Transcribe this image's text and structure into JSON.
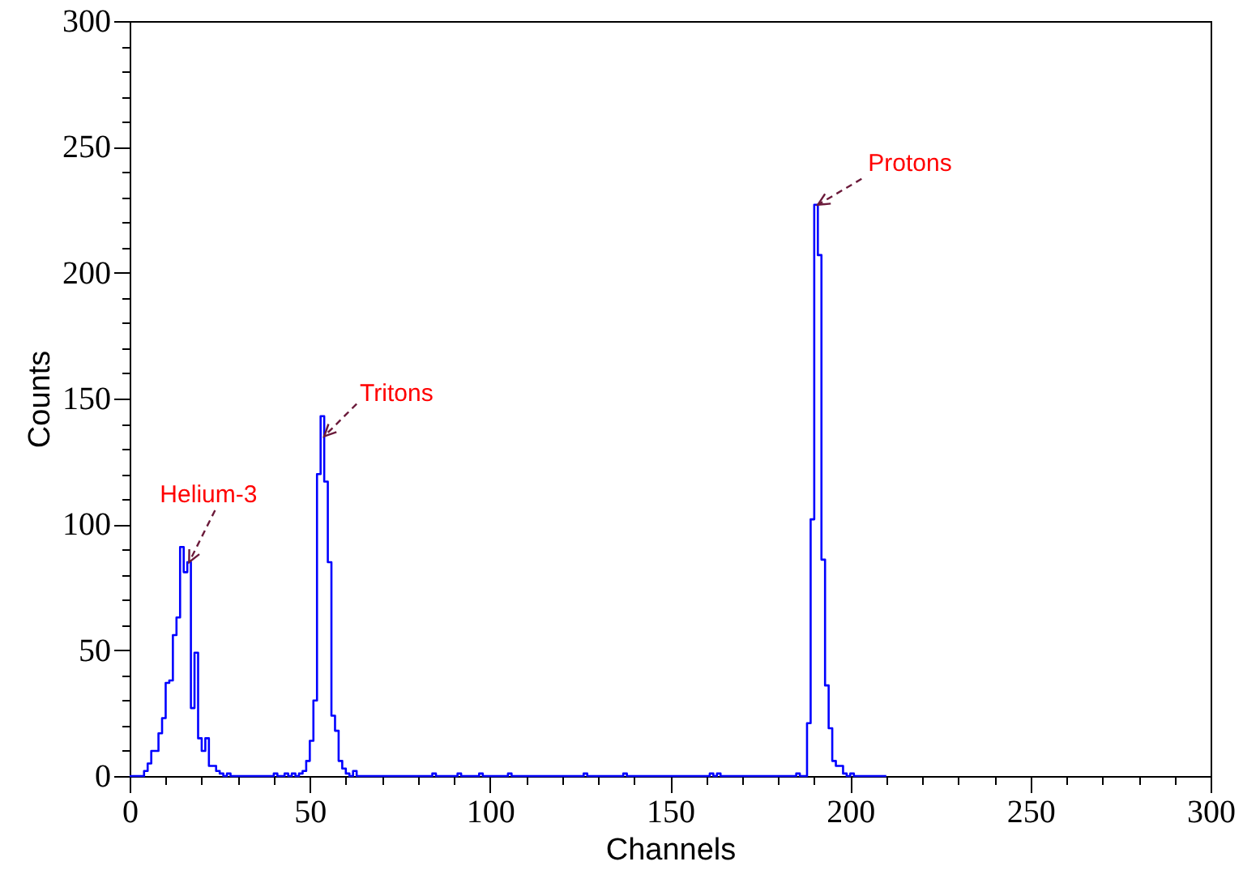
{
  "chart_data": {
    "type": "histogram",
    "xlabel": "Channels",
    "ylabel": "Counts",
    "bins": [
      0,
      1,
      2,
      3,
      4,
      5,
      6,
      7,
      8,
      9,
      10,
      11,
      12,
      13,
      14,
      15,
      16,
      17,
      18,
      19,
      20,
      21,
      22,
      23,
      24,
      25,
      26,
      27,
      28,
      29,
      30,
      31,
      32,
      33,
      34,
      35,
      36,
      37,
      38,
      39,
      40,
      41,
      42,
      43,
      44,
      45,
      46,
      47,
      48,
      49,
      50,
      51,
      52,
      53,
      54,
      55,
      56,
      57,
      58,
      59,
      60,
      61,
      62,
      63,
      64,
      65,
      66,
      67,
      68,
      69,
      70,
      71,
      72,
      73,
      74,
      75,
      76,
      77,
      78,
      79,
      80,
      81,
      82,
      83,
      84,
      85,
      86,
      87,
      88,
      89,
      90,
      91,
      92,
      93,
      94,
      95,
      96,
      97,
      98,
      99,
      100,
      101,
      102,
      103,
      104,
      105,
      106,
      107,
      108,
      109,
      110,
      111,
      112,
      113,
      114,
      115,
      116,
      117,
      118,
      119,
      120,
      121,
      122,
      123,
      124,
      125,
      126,
      127,
      128,
      129,
      130,
      131,
      132,
      133,
      134,
      135,
      136,
      137,
      138,
      139,
      140,
      141,
      142,
      143,
      144,
      145,
      146,
      147,
      148,
      149,
      150,
      151,
      152,
      153,
      154,
      155,
      156,
      157,
      158,
      159,
      160,
      161,
      162,
      163,
      164,
      165,
      166,
      167,
      168,
      169,
      170,
      171,
      172,
      173,
      174,
      175,
      176,
      177,
      178,
      179,
      180,
      181,
      182,
      183,
      184,
      185,
      186,
      187,
      188,
      189,
      190,
      191,
      192,
      193,
      194,
      195,
      196,
      197,
      198,
      199,
      200,
      201,
      202,
      203,
      204,
      205,
      206,
      207,
      208,
      209,
      210
    ],
    "values": [
      0,
      0,
      0,
      0,
      2,
      5,
      10,
      10,
      17,
      23,
      37,
      38,
      56,
      63,
      91,
      81,
      85,
      27,
      49,
      15,
      10,
      15,
      4,
      4,
      2,
      1,
      0,
      1,
      0,
      0,
      0,
      0,
      0,
      0,
      0,
      0,
      0,
      0,
      0,
      0,
      1,
      0,
      0,
      1,
      0,
      1,
      0,
      1,
      2,
      6,
      14,
      30,
      120,
      143,
      117,
      85,
      24,
      18,
      6,
      3,
      1,
      0,
      2,
      0,
      0,
      0,
      0,
      0,
      0,
      0,
      0,
      0,
      0,
      0,
      0,
      0,
      0,
      0,
      0,
      0,
      0,
      0,
      0,
      0,
      1,
      0,
      0,
      0,
      0,
      0,
      0,
      1,
      0,
      0,
      0,
      0,
      0,
      1,
      0,
      0,
      0,
      0,
      0,
      0,
      0,
      1,
      0,
      0,
      0,
      0,
      0,
      0,
      0,
      0,
      0,
      0,
      0,
      0,
      0,
      0,
      0,
      0,
      0,
      0,
      0,
      0,
      1,
      0,
      0,
      0,
      0,
      0,
      0,
      0,
      0,
      0,
      0,
      1,
      0,
      0,
      0,
      0,
      0,
      0,
      0,
      0,
      0,
      0,
      0,
      0,
      0,
      0,
      0,
      0,
      0,
      0,
      0,
      0,
      0,
      0,
      0,
      1,
      0,
      1,
      0,
      0,
      0,
      0,
      0,
      0,
      0,
      0,
      0,
      0,
      0,
      0,
      0,
      0,
      0,
      0,
      0,
      0,
      0,
      0,
      0,
      1,
      0,
      0,
      21,
      102,
      227,
      207,
      86,
      36,
      19,
      6,
      4,
      4,
      1,
      0,
      1,
      0,
      0,
      0,
      0,
      0,
      0,
      0,
      0,
      0
    ],
    "color": "#0000ff",
    "xlim": [
      0,
      300
    ],
    "ylim": [
      0,
      300
    ],
    "xticks": [
      0,
      {
        "value": 10,
        "label": null
      },
      {
        "value": 20,
        "label": null
      },
      {
        "value": 30,
        "label": null
      },
      {
        "value": 40,
        "label": null
      },
      50,
      {
        "value": 60,
        "label": null
      },
      {
        "value": 70,
        "label": null
      },
      {
        "value": 80,
        "label": null
      },
      {
        "value": 90,
        "label": null
      },
      100,
      {
        "value": 110,
        "label": null
      },
      {
        "value": 120,
        "label": null
      },
      {
        "value": 130,
        "label": null
      },
      {
        "value": 140,
        "label": null
      },
      150,
      {
        "value": 160,
        "label": null
      },
      {
        "value": 170,
        "label": null
      },
      {
        "value": 180,
        "label": null
      },
      {
        "value": 190,
        "label": null
      },
      200,
      {
        "value": 210,
        "label": null
      },
      {
        "value": 220,
        "label": null
      },
      {
        "value": 230,
        "label": null
      },
      {
        "value": 240,
        "label": null
      },
      250,
      {
        "value": 260,
        "label": null
      },
      {
        "value": 270,
        "label": null
      },
      {
        "value": 280,
        "label": null
      },
      {
        "value": 290,
        "label": null
      },
      300
    ],
    "yticks": [
      0,
      {
        "value": 10,
        "label": null
      },
      {
        "value": 20,
        "label": null
      },
      {
        "value": 30,
        "label": null
      },
      {
        "value": 40,
        "label": null
      },
      50,
      {
        "value": 60,
        "label": null
      },
      {
        "value": 70,
        "label": null
      },
      {
        "value": 80,
        "label": null
      },
      {
        "value": 90,
        "label": null
      },
      100,
      {
        "value": 110,
        "label": null
      },
      {
        "value": 120,
        "label": null
      },
      {
        "value": 130,
        "label": null
      },
      {
        "value": 140,
        "label": null
      },
      150,
      {
        "value": 160,
        "label": null
      },
      {
        "value": 170,
        "label": null
      },
      {
        "value": 180,
        "label": null
      },
      {
        "value": 190,
        "label": null
      },
      200,
      {
        "value": 210,
        "label": null
      },
      {
        "value": 220,
        "label": null
      },
      {
        "value": 230,
        "label": null
      },
      {
        "value": 240,
        "label": null
      },
      250,
      {
        "value": 260,
        "label": null
      },
      {
        "value": 270,
        "label": null
      },
      {
        "value": 280,
        "label": null
      },
      {
        "value": 290,
        "label": null
      },
      300
    ],
    "grid": false,
    "annotations": [
      {
        "text": "Helium-3",
        "x": 16.5,
        "y": 85
      },
      {
        "text": "Tritons",
        "x": 54,
        "y": 135
      },
      {
        "text": "Protons",
        "x": 191,
        "y": 227
      }
    ]
  }
}
